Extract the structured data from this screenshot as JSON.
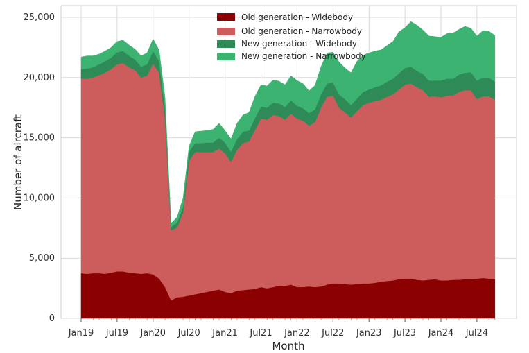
{
  "chart_data": {
    "type": "area",
    "stacked": true,
    "title": "",
    "xlabel": "Month",
    "ylabel": "Number of aircraft",
    "ylim": [
      0,
      25000
    ],
    "yticks": [
      0,
      5000,
      10000,
      15000,
      20000,
      25000
    ],
    "ytick_labels": [
      "0",
      "5,000",
      "10,000",
      "15,000",
      "20,000",
      "25,000"
    ],
    "xticks": [
      {
        "index": 0,
        "label": "Jan19"
      },
      {
        "index": 6,
        "label": "Jul19"
      },
      {
        "index": 12,
        "label": "Jan20"
      },
      {
        "index": 18,
        "label": "Jul20"
      },
      {
        "index": 24,
        "label": "Jan21"
      },
      {
        "index": 30,
        "label": "Jul21"
      },
      {
        "index": 36,
        "label": "Jan22"
      },
      {
        "index": 42,
        "label": "Jul22"
      },
      {
        "index": 48,
        "label": "Jan23"
      },
      {
        "index": 54,
        "label": "Jul23"
      },
      {
        "index": 60,
        "label": "Jan24"
      },
      {
        "index": 66,
        "label": "Jul24"
      }
    ],
    "x_count": 70,
    "grid": true,
    "legend_position": "top-center",
    "series": [
      {
        "name": "Old generation - Widebody",
        "color": "#8b0000",
        "values": [
          3750,
          3700,
          3750,
          3750,
          3700,
          3800,
          3900,
          3900,
          3800,
          3750,
          3700,
          3750,
          3650,
          3300,
          2600,
          1500,
          1750,
          1800,
          1900,
          2000,
          2100,
          2200,
          2300,
          2400,
          2200,
          2100,
          2300,
          2350,
          2400,
          2450,
          2600,
          2500,
          2600,
          2700,
          2700,
          2800,
          2600,
          2600,
          2650,
          2600,
          2650,
          2800,
          2900,
          2900,
          2850,
          2800,
          2850,
          2900,
          2900,
          2950,
          3050,
          3100,
          3150,
          3250,
          3300,
          3300,
          3200,
          3150,
          3200,
          3250,
          3150,
          3150,
          3200,
          3200,
          3250,
          3250,
          3300,
          3350,
          3300,
          3250
        ]
      },
      {
        "name": "Old generation - Narrowbody",
        "color": "#cd5c5c",
        "values": [
          16150,
          16200,
          16250,
          16450,
          16700,
          16900,
          17200,
          17300,
          17050,
          16850,
          16300,
          16400,
          17500,
          17100,
          13900,
          5800,
          5800,
          7000,
          11200,
          11800,
          11700,
          11600,
          11500,
          11700,
          11500,
          10900,
          11700,
          12200,
          12300,
          13200,
          14000,
          14000,
          14300,
          14100,
          13800,
          14200,
          14000,
          13800,
          13350,
          13700,
          14850,
          15600,
          15600,
          14600,
          14250,
          13900,
          14350,
          14800,
          15000,
          15100,
          15100,
          15300,
          15450,
          15750,
          16100,
          16200,
          16000,
          15800,
          15200,
          15200,
          15200,
          15350,
          15300,
          15600,
          15700,
          15700,
          14900,
          15100,
          15150,
          14900
        ]
      },
      {
        "name": "New generation - Widebody",
        "color": "#2e8b57",
        "values": [
          800,
          850,
          850,
          900,
          950,
          950,
          1000,
          1000,
          950,
          900,
          900,
          950,
          1050,
          1000,
          950,
          300,
          400,
          450,
          750,
          750,
          750,
          800,
          800,
          900,
          900,
          850,
          900,
          950,
          900,
          1000,
          1000,
          1000,
          1000,
          1050,
          1050,
          1100,
          1050,
          1050,
          1050,
          1050,
          1100,
          1100,
          1100,
          1100,
          1100,
          1000,
          1050,
          1100,
          1100,
          1150,
          1200,
          1250,
          1300,
          1350,
          1400,
          1400,
          1350,
          1350,
          1350,
          1300,
          1400,
          1400,
          1400,
          1450,
          1450,
          1500,
          1550,
          1550,
          1550,
          1500
        ]
      },
      {
        "name": "New generation - Narrowbody",
        "color": "#3cb371",
        "values": [
          1000,
          1050,
          950,
          850,
          850,
          850,
          900,
          900,
          900,
          850,
          900,
          950,
          1000,
          900,
          850,
          300,
          450,
          750,
          450,
          950,
          1000,
          1000,
          1100,
          1200,
          1000,
          1050,
          1300,
          1400,
          1500,
          1800,
          1800,
          1800,
          1900,
          1850,
          1850,
          2050,
          2100,
          2050,
          1850,
          2000,
          2300,
          2550,
          2500,
          2700,
          2600,
          2700,
          3100,
          3050,
          3050,
          3000,
          2950,
          3000,
          3100,
          3450,
          3350,
          3750,
          3800,
          3650,
          3700,
          3650,
          3600,
          3750,
          3800,
          3750,
          3850,
          3650,
          3700,
          3900,
          3850,
          3850
        ]
      }
    ]
  }
}
